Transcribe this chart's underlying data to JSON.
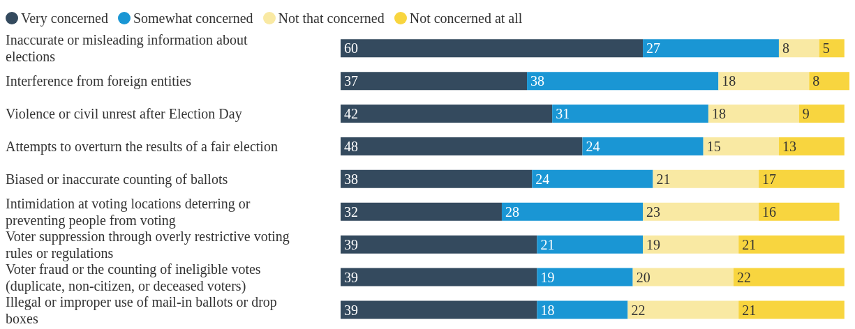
{
  "chart_data": {
    "type": "bar",
    "orientation": "horizontal",
    "stacked": true,
    "legend": "top left",
    "data_labels": true,
    "tick_labels": "y",
    "xlim": [
      0,
      101
    ],
    "categories": [
      "Inaccurate or misleading information about elections",
      "Interference from foreign entities",
      "Violence or civil unrest after Election Day",
      "Attempts to overturn the results of a fair election",
      "Biased or inaccurate counting of ballots",
      "Intimidation at voting locations deterring or preventing people from voting",
      "Voter suppression through overly restrictive voting rules or regulations",
      "Voter fraud or the counting of ineligible votes (duplicate, non-citizen, or deceased voters)",
      "Illegal or improper use of mail-in ballots or drop boxes"
    ],
    "series": [
      {
        "name": "Very concerned",
        "color": "#344a5e",
        "values": [
          60,
          37,
          42,
          48,
          38,
          32,
          39,
          39,
          39
        ]
      },
      {
        "name": "Somewhat concerned",
        "color": "#1a96d4",
        "values": [
          27,
          38,
          31,
          24,
          24,
          28,
          21,
          19,
          18
        ]
      },
      {
        "name": "Not that concerned",
        "color": "#f9e9a3",
        "values": [
          8,
          18,
          18,
          15,
          21,
          23,
          19,
          20,
          22
        ]
      },
      {
        "name": "Not concerned at all",
        "color": "#f8d53f",
        "values": [
          5,
          8,
          9,
          13,
          17,
          16,
          21,
          22,
          21
        ]
      }
    ]
  }
}
